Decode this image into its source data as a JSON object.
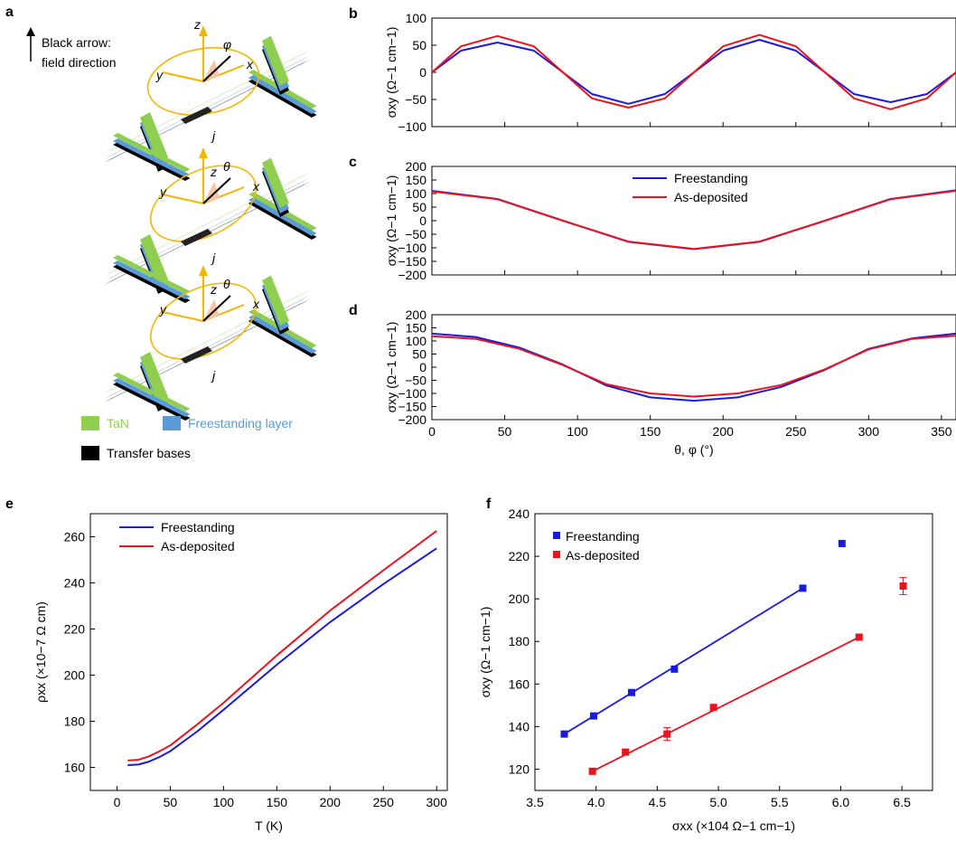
{
  "panel_letters": {
    "a": "a",
    "b": "b",
    "c": "c",
    "d": "d",
    "e": "e",
    "f": "f"
  },
  "schematic": {
    "arrow_note_line1": "Black arrow:",
    "arrow_note_line2": "field direction",
    "legend": [
      {
        "label": "TaN",
        "color": "#8fce4f"
      },
      {
        "label": "Freestanding layer",
        "color": "#5b9bd5"
      },
      {
        "label": "Transfer bases",
        "color": "#000000"
      }
    ],
    "configs": [
      {
        "axes": [
          "z",
          "y",
          "x"
        ],
        "angle": "φ",
        "current": "j"
      },
      {
        "axes": [
          "y",
          "z",
          "x"
        ],
        "angle": "θ",
        "current": "j"
      },
      {
        "axes": [
          "y",
          "z",
          "x"
        ],
        "angle": "θ",
        "current": "j"
      }
    ]
  },
  "colors": {
    "freestanding": "#1a1adc",
    "asdeposited": "#e8141e"
  },
  "legend_labels": {
    "freestanding": "Freestanding",
    "asdeposited": "As-deposited"
  },
  "chart_data": [
    {
      "id": "b",
      "type": "line",
      "ylabel": "σxy (Ω−1 cm−1)",
      "xlim": [
        0,
        360
      ],
      "ylim": [
        -100,
        100
      ],
      "yticks": [
        "100",
        "50",
        "0",
        "−50",
        "−100"
      ],
      "series": [
        {
          "name": "Freestanding",
          "x": [
            0,
            20,
            45,
            70,
            90,
            110,
            135,
            160,
            180,
            200,
            225,
            250,
            270,
            290,
            315,
            340,
            360
          ],
          "y": [
            0,
            40,
            55,
            40,
            0,
            -40,
            -58,
            -40,
            0,
            40,
            60,
            40,
            0,
            -40,
            -55,
            -40,
            0
          ]
        },
        {
          "name": "As-deposited",
          "x": [
            0,
            20,
            45,
            70,
            90,
            110,
            135,
            160,
            180,
            200,
            225,
            250,
            270,
            290,
            315,
            340,
            360
          ],
          "y": [
            0,
            48,
            67,
            48,
            0,
            -48,
            -65,
            -48,
            0,
            48,
            69,
            48,
            0,
            -48,
            -68,
            -48,
            0
          ]
        }
      ]
    },
    {
      "id": "c",
      "type": "line",
      "ylabel": "σxy (Ω−1 cm−1)",
      "xlim": [
        0,
        360
      ],
      "ylim": [
        -200,
        200
      ],
      "yticks": [
        "200",
        "150",
        "100",
        "50",
        "0",
        "−50",
        "−100",
        "−150",
        "−200"
      ],
      "series": [
        {
          "name": "Freestanding",
          "x": [
            0,
            45,
            90,
            135,
            180,
            225,
            270,
            315,
            360
          ],
          "y": [
            110,
            80,
            0,
            -78,
            -105,
            -78,
            0,
            80,
            112
          ]
        },
        {
          "name": "As-deposited",
          "x": [
            0,
            45,
            90,
            135,
            180,
            225,
            270,
            315,
            360
          ],
          "y": [
            108,
            79,
            0,
            -77,
            -104,
            -77,
            0,
            79,
            110
          ]
        }
      ]
    },
    {
      "id": "d",
      "type": "line",
      "ylabel": "σxy (Ω−1 cm−1)",
      "xlabel": "θ, φ (°)",
      "xlim": [
        0,
        360
      ],
      "ylim": [
        -200,
        200
      ],
      "xticks": [
        "0",
        "50",
        "100",
        "150",
        "200",
        "250",
        "300",
        "350"
      ],
      "yticks": [
        "200",
        "150",
        "100",
        "50",
        "0",
        "−50",
        "−100",
        "−150",
        "−200"
      ],
      "series": [
        {
          "name": "Freestanding",
          "x": [
            0,
            30,
            60,
            90,
            120,
            150,
            180,
            210,
            240,
            270,
            300,
            330,
            360
          ],
          "y": [
            128,
            115,
            75,
            10,
            -70,
            -115,
            -128,
            -115,
            -75,
            -10,
            70,
            110,
            128
          ]
        },
        {
          "name": "As-deposited",
          "x": [
            0,
            30,
            60,
            90,
            120,
            150,
            180,
            210,
            240,
            270,
            300,
            330,
            360
          ],
          "y": [
            118,
            108,
            70,
            8,
            -65,
            -100,
            -112,
            -100,
            -68,
            -8,
            68,
            108,
            120
          ]
        }
      ]
    },
    {
      "id": "e",
      "type": "line",
      "xlabel": "T (K)",
      "ylabel": "ρxx (×10−7 Ω cm)",
      "xlim": [
        -25,
        310
      ],
      "ylim": [
        150,
        270
      ],
      "xticks": [
        "0",
        "50",
        "100",
        "150",
        "200",
        "250",
        "300"
      ],
      "yticks": [
        "160",
        "180",
        "200",
        "220",
        "240",
        "260"
      ],
      "series": [
        {
          "name": "Freestanding",
          "x": [
            10,
            20,
            30,
            40,
            50,
            75,
            100,
            150,
            200,
            250,
            300
          ],
          "y": [
            161,
            161.2,
            162.5,
            164.5,
            167,
            175.5,
            185,
            204.5,
            223,
            239.5,
            255
          ]
        },
        {
          "name": "As-deposited",
          "x": [
            10,
            20,
            30,
            40,
            50,
            75,
            100,
            150,
            200,
            250,
            300
          ],
          "y": [
            163,
            163.3,
            164.8,
            167,
            169.5,
            178.5,
            188,
            208.5,
            228,
            245.5,
            262.5
          ]
        }
      ]
    },
    {
      "id": "f",
      "type": "scatter",
      "xlabel": "σxx (×104 Ω−1 cm−1)",
      "ylabel": "σxy (Ω−1 cm−1)",
      "xlim": [
        3.5,
        6.75
      ],
      "ylim": [
        110,
        240
      ],
      "xticks": [
        "3.5",
        "4.0",
        "4.5",
        "5.0",
        "5.5",
        "6.0",
        "6.5"
      ],
      "yticks": [
        "120",
        "140",
        "160",
        "180",
        "200",
        "220",
        "240"
      ],
      "series": [
        {
          "name": "Freestanding",
          "points": [
            [
              3.74,
              136.5
            ],
            [
              3.98,
              145
            ],
            [
              4.29,
              156
            ],
            [
              4.64,
              167
            ],
            [
              5.69,
              205
            ],
            [
              6.01,
              226
            ]
          ],
          "errors": [
            0,
            0,
            0,
            0,
            0,
            0
          ],
          "fit": [
            [
              3.74,
              136.5
            ],
            [
              5.69,
              205
            ]
          ]
        },
        {
          "name": "As-deposited",
          "points": [
            [
              3.97,
              119
            ],
            [
              4.24,
              128
            ],
            [
              4.58,
              136.5
            ],
            [
              4.96,
              149
            ],
            [
              6.15,
              182
            ],
            [
              6.51,
              206
            ]
          ],
          "errors": [
            0,
            0,
            3,
            0,
            0,
            4
          ],
          "fit": [
            [
              3.97,
              119
            ],
            [
              6.15,
              182
            ]
          ]
        }
      ]
    }
  ]
}
